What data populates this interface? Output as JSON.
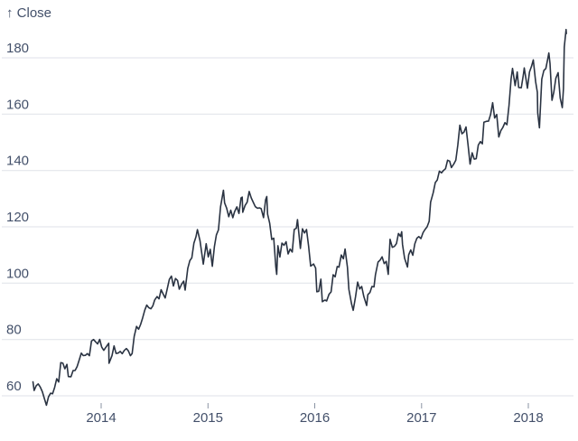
{
  "chart_data": {
    "type": "line",
    "title": "",
    "ylabel": "↑ Close",
    "series_name": "Close",
    "grid": "horizontal",
    "legend": "none",
    "colors": {
      "line": "#2a3342",
      "grid": "#dfe2e8",
      "tick": "#8a93a3",
      "text": "#43506a",
      "background": "#ffffff"
    },
    "x_axis": {
      "tick_years": [
        2014,
        2015,
        2016,
        2017,
        2018
      ],
      "tick_labels": [
        "2014",
        "2015",
        "2016",
        "2017",
        "2018"
      ],
      "range_dates": [
        "2013-05-13",
        "2018-05-11"
      ]
    },
    "y_axis": {
      "ticks": [
        180,
        160,
        140,
        120,
        100,
        80,
        60
      ],
      "ylim": [
        52.5,
        192.5
      ]
    },
    "points": [
      [
        "2013-05-13",
        64.96
      ],
      [
        "2013-05-17",
        61.89
      ],
      [
        "2013-05-24",
        63.59
      ],
      [
        "2013-05-31",
        64.25
      ],
      [
        "2013-06-07",
        63.12
      ],
      [
        "2013-06-14",
        61.44
      ],
      [
        "2013-06-21",
        59.07
      ],
      [
        "2013-06-28",
        56.65
      ],
      [
        "2013-07-05",
        59.63
      ],
      [
        "2013-07-12",
        60.93
      ],
      [
        "2013-07-19",
        60.71
      ],
      [
        "2013-07-26",
        62.99
      ],
      [
        "2013-08-02",
        66.08
      ],
      [
        "2013-08-09",
        64.92
      ],
      [
        "2013-08-16",
        71.77
      ],
      [
        "2013-08-23",
        71.57
      ],
      [
        "2013-08-30",
        69.6
      ],
      [
        "2013-09-06",
        71.17
      ],
      [
        "2013-09-11",
        66.82
      ],
      [
        "2013-09-20",
        66.77
      ],
      [
        "2013-09-27",
        68.96
      ],
      [
        "2013-10-04",
        69.0
      ],
      [
        "2013-10-11",
        70.4
      ],
      [
        "2013-10-18",
        72.7
      ],
      [
        "2013-10-25",
        75.14
      ],
      [
        "2013-11-01",
        74.29
      ],
      [
        "2013-11-08",
        74.37
      ],
      [
        "2013-11-15",
        74.99
      ],
      [
        "2013-11-22",
        74.26
      ],
      [
        "2013-11-29",
        79.44
      ],
      [
        "2013-12-06",
        80.0
      ],
      [
        "2013-12-13",
        79.2
      ],
      [
        "2013-12-20",
        78.43
      ],
      [
        "2013-12-27",
        80.01
      ],
      [
        "2014-01-03",
        77.28
      ],
      [
        "2014-01-10",
        76.13
      ],
      [
        "2014-01-17",
        77.24
      ],
      [
        "2014-01-27",
        78.64
      ],
      [
        "2014-01-28",
        71.54
      ],
      [
        "2014-02-07",
        74.24
      ],
      [
        "2014-02-14",
        77.71
      ],
      [
        "2014-02-21",
        75.04
      ],
      [
        "2014-02-28",
        75.18
      ],
      [
        "2014-03-07",
        75.77
      ],
      [
        "2014-03-14",
        74.96
      ],
      [
        "2014-03-21",
        76.12
      ],
      [
        "2014-03-28",
        76.78
      ],
      [
        "2014-04-04",
        75.97
      ],
      [
        "2014-04-11",
        74.23
      ],
      [
        "2014-04-17",
        74.99
      ],
      [
        "2014-04-24",
        81.11
      ],
      [
        "2014-05-02",
        84.65
      ],
      [
        "2014-05-09",
        83.65
      ],
      [
        "2014-05-16",
        85.36
      ],
      [
        "2014-05-23",
        87.73
      ],
      [
        "2014-05-30",
        90.43
      ],
      [
        "2014-06-06",
        92.22
      ],
      [
        "2014-06-13",
        91.28
      ],
      [
        "2014-06-20",
        90.91
      ],
      [
        "2014-06-27",
        91.98
      ],
      [
        "2014-07-03",
        94.03
      ],
      [
        "2014-07-11",
        95.22
      ],
      [
        "2014-07-18",
        94.43
      ],
      [
        "2014-07-25",
        97.67
      ],
      [
        "2014-08-01",
        96.13
      ],
      [
        "2014-08-08",
        94.74
      ],
      [
        "2014-08-15",
        97.98
      ],
      [
        "2014-08-22",
        101.32
      ],
      [
        "2014-08-29",
        102.5
      ],
      [
        "2014-09-05",
        98.97
      ],
      [
        "2014-09-12",
        101.66
      ],
      [
        "2014-09-19",
        100.96
      ],
      [
        "2014-09-25",
        97.87
      ],
      [
        "2014-10-03",
        99.62
      ],
      [
        "2014-10-10",
        100.73
      ],
      [
        "2014-10-15",
        97.54
      ],
      [
        "2014-10-24",
        105.22
      ],
      [
        "2014-10-31",
        108.0
      ],
      [
        "2014-11-07",
        109.01
      ],
      [
        "2014-11-14",
        114.18
      ],
      [
        "2014-11-21",
        116.47
      ],
      [
        "2014-11-26",
        119.0
      ],
      [
        "2014-12-05",
        115.0
      ],
      [
        "2014-12-12",
        109.73
      ],
      [
        "2014-12-16",
        106.75
      ],
      [
        "2014-12-26",
        113.99
      ],
      [
        "2015-01-02",
        109.33
      ],
      [
        "2015-01-09",
        112.01
      ],
      [
        "2015-01-16",
        105.99
      ],
      [
        "2015-01-23",
        112.98
      ],
      [
        "2015-01-30",
        117.16
      ],
      [
        "2015-02-06",
        118.93
      ],
      [
        "2015-02-13",
        127.08
      ],
      [
        "2015-02-23",
        133.0
      ],
      [
        "2015-02-27",
        128.46
      ],
      [
        "2015-03-06",
        126.6
      ],
      [
        "2015-03-13",
        123.59
      ],
      [
        "2015-03-20",
        125.9
      ],
      [
        "2015-03-27",
        123.25
      ],
      [
        "2015-04-02",
        125.32
      ],
      [
        "2015-04-10",
        127.1
      ],
      [
        "2015-04-17",
        124.75
      ],
      [
        "2015-04-24",
        130.28
      ],
      [
        "2015-04-28",
        130.56
      ],
      [
        "2015-04-30",
        125.15
      ],
      [
        "2015-05-08",
        127.62
      ],
      [
        "2015-05-15",
        128.77
      ],
      [
        "2015-05-22",
        132.54
      ],
      [
        "2015-05-29",
        130.28
      ],
      [
        "2015-06-05",
        128.65
      ],
      [
        "2015-06-12",
        127.17
      ],
      [
        "2015-06-19",
        126.6
      ],
      [
        "2015-06-26",
        126.75
      ],
      [
        "2015-07-02",
        126.44
      ],
      [
        "2015-07-10",
        123.28
      ],
      [
        "2015-07-17",
        129.62
      ],
      [
        "2015-07-21",
        130.75
      ],
      [
        "2015-07-24",
        124.5
      ],
      [
        "2015-07-31",
        121.3
      ],
      [
        "2015-08-07",
        115.52
      ],
      [
        "2015-08-14",
        115.96
      ],
      [
        "2015-08-21",
        105.76
      ],
      [
        "2015-08-24",
        103.12
      ],
      [
        "2015-08-28",
        113.29
      ],
      [
        "2015-09-04",
        109.27
      ],
      [
        "2015-09-11",
        114.21
      ],
      [
        "2015-09-18",
        113.45
      ],
      [
        "2015-09-25",
        114.71
      ],
      [
        "2015-10-02",
        110.38
      ],
      [
        "2015-10-09",
        112.12
      ],
      [
        "2015-10-16",
        111.04
      ],
      [
        "2015-10-23",
        119.08
      ],
      [
        "2015-10-30",
        119.5
      ],
      [
        "2015-11-03",
        122.57
      ],
      [
        "2015-11-13",
        112.34
      ],
      [
        "2015-11-20",
        119.3
      ],
      [
        "2015-11-27",
        117.81
      ],
      [
        "2015-12-04",
        119.03
      ],
      [
        "2015-12-11",
        113.18
      ],
      [
        "2015-12-18",
        106.03
      ],
      [
        "2015-12-28",
        106.82
      ],
      [
        "2016-01-04",
        105.35
      ],
      [
        "2016-01-08",
        96.96
      ],
      [
        "2016-01-15",
        97.13
      ],
      [
        "2016-01-22",
        101.42
      ],
      [
        "2016-01-27",
        93.42
      ],
      [
        "2016-02-05",
        94.02
      ],
      [
        "2016-02-11",
        93.7
      ],
      [
        "2016-02-19",
        96.04
      ],
      [
        "2016-02-26",
        96.91
      ],
      [
        "2016-03-04",
        103.01
      ],
      [
        "2016-03-11",
        102.26
      ],
      [
        "2016-03-18",
        105.92
      ],
      [
        "2016-03-24",
        105.67
      ],
      [
        "2016-04-01",
        109.99
      ],
      [
        "2016-04-08",
        108.66
      ],
      [
        "2016-04-14",
        112.1
      ],
      [
        "2016-04-22",
        105.68
      ],
      [
        "2016-04-27",
        97.82
      ],
      [
        "2016-05-06",
        92.72
      ],
      [
        "2016-05-12",
        90.34
      ],
      [
        "2016-05-20",
        95.22
      ],
      [
        "2016-05-27",
        100.35
      ],
      [
        "2016-06-03",
        97.92
      ],
      [
        "2016-06-10",
        98.83
      ],
      [
        "2016-06-17",
        95.33
      ],
      [
        "2016-06-27",
        92.04
      ],
      [
        "2016-07-01",
        95.89
      ],
      [
        "2016-07-08",
        96.68
      ],
      [
        "2016-07-15",
        98.78
      ],
      [
        "2016-07-22",
        98.66
      ],
      [
        "2016-07-27",
        102.95
      ],
      [
        "2016-08-05",
        107.48
      ],
      [
        "2016-08-12",
        108.18
      ],
      [
        "2016-08-19",
        109.36
      ],
      [
        "2016-08-26",
        106.94
      ],
      [
        "2016-09-02",
        107.73
      ],
      [
        "2016-09-09",
        103.13
      ],
      [
        "2016-09-15",
        115.57
      ],
      [
        "2016-09-23",
        112.71
      ],
      [
        "2016-09-30",
        113.05
      ],
      [
        "2016-10-07",
        114.06
      ],
      [
        "2016-10-14",
        117.63
      ],
      [
        "2016-10-21",
        116.6
      ],
      [
        "2016-10-25",
        118.25
      ],
      [
        "2016-10-28",
        113.72
      ],
      [
        "2016-11-04",
        108.84
      ],
      [
        "2016-11-14",
        105.71
      ],
      [
        "2016-11-18",
        110.06
      ],
      [
        "2016-11-25",
        111.79
      ],
      [
        "2016-12-02",
        109.9
      ],
      [
        "2016-12-09",
        113.95
      ],
      [
        "2016-12-16",
        115.97
      ],
      [
        "2016-12-23",
        116.52
      ],
      [
        "2016-12-30",
        115.82
      ],
      [
        "2017-01-06",
        117.91
      ],
      [
        "2017-01-13",
        119.04
      ],
      [
        "2017-01-20",
        120.0
      ],
      [
        "2017-01-27",
        121.95
      ],
      [
        "2017-02-01",
        128.75
      ],
      [
        "2017-02-10",
        132.12
      ],
      [
        "2017-02-17",
        135.72
      ],
      [
        "2017-02-24",
        136.66
      ],
      [
        "2017-03-03",
        139.78
      ],
      [
        "2017-03-10",
        139.14
      ],
      [
        "2017-03-17",
        139.99
      ],
      [
        "2017-03-24",
        140.64
      ],
      [
        "2017-03-31",
        143.66
      ],
      [
        "2017-04-07",
        143.34
      ],
      [
        "2017-04-13",
        141.05
      ],
      [
        "2017-04-21",
        142.27
      ],
      [
        "2017-04-28",
        143.65
      ],
      [
        "2017-05-05",
        148.96
      ],
      [
        "2017-05-12",
        156.1
      ],
      [
        "2017-05-19",
        153.06
      ],
      [
        "2017-05-26",
        153.61
      ],
      [
        "2017-06-02",
        155.45
      ],
      [
        "2017-06-09",
        148.98
      ],
      [
        "2017-06-16",
        142.27
      ],
      [
        "2017-06-23",
        146.28
      ],
      [
        "2017-06-30",
        144.02
      ],
      [
        "2017-07-07",
        144.18
      ],
      [
        "2017-07-14",
        149.04
      ],
      [
        "2017-07-21",
        150.27
      ],
      [
        "2017-07-28",
        149.5
      ],
      [
        "2017-08-02",
        157.14
      ],
      [
        "2017-08-11",
        157.48
      ],
      [
        "2017-08-18",
        157.5
      ],
      [
        "2017-08-25",
        159.86
      ],
      [
        "2017-09-01",
        164.05
      ],
      [
        "2017-09-08",
        158.63
      ],
      [
        "2017-09-15",
        159.88
      ],
      [
        "2017-09-22",
        151.89
      ],
      [
        "2017-09-29",
        154.12
      ],
      [
        "2017-10-06",
        155.3
      ],
      [
        "2017-10-13",
        156.99
      ],
      [
        "2017-10-20",
        156.25
      ],
      [
        "2017-10-27",
        163.05
      ],
      [
        "2017-11-03",
        172.5
      ],
      [
        "2017-11-08",
        176.24
      ],
      [
        "2017-11-17",
        170.15
      ],
      [
        "2017-11-24",
        174.97
      ],
      [
        "2017-11-29",
        169.48
      ],
      [
        "2017-12-08",
        169.37
      ],
      [
        "2017-12-15",
        173.97
      ],
      [
        "2017-12-18",
        176.42
      ],
      [
        "2017-12-29",
        169.23
      ],
      [
        "2018-01-05",
        175.0
      ],
      [
        "2018-01-12",
        177.09
      ],
      [
        "2018-01-18",
        179.26
      ],
      [
        "2018-01-26",
        171.51
      ],
      [
        "2018-02-01",
        167.78
      ],
      [
        "2018-02-02",
        160.5
      ],
      [
        "2018-02-08",
        155.15
      ],
      [
        "2018-02-16",
        172.43
      ],
      [
        "2018-02-23",
        175.5
      ],
      [
        "2018-03-02",
        176.21
      ],
      [
        "2018-03-09",
        179.98
      ],
      [
        "2018-03-12",
        181.72
      ],
      [
        "2018-03-16",
        178.02
      ],
      [
        "2018-03-23",
        164.94
      ],
      [
        "2018-03-29",
        167.78
      ],
      [
        "2018-04-05",
        172.8
      ],
      [
        "2018-04-13",
        174.73
      ],
      [
        "2018-04-20",
        165.72
      ],
      [
        "2018-04-27",
        162.32
      ],
      [
        "2018-05-01",
        169.1
      ],
      [
        "2018-05-04",
        183.83
      ],
      [
        "2018-05-10",
        190.04
      ],
      [
        "2018-05-11",
        188.59
      ]
    ]
  }
}
